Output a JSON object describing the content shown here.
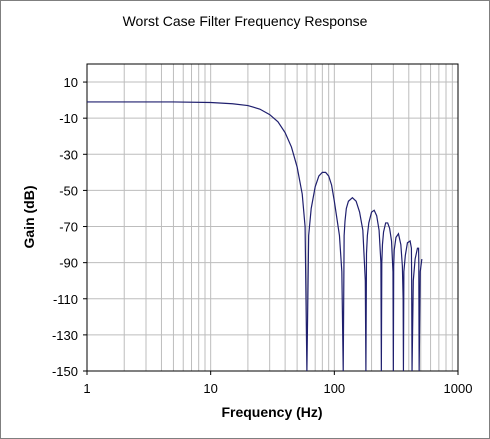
{
  "chart_data": {
    "type": "line",
    "title": "Worst Case Filter Frequency Response",
    "xlabel": "Frequency (Hz)",
    "ylabel": "Gain (dB)",
    "xscale": "log",
    "xlim": [
      1,
      1000
    ],
    "ylim": [
      -150,
      20
    ],
    "x_ticks": [
      1,
      10,
      100,
      1000
    ],
    "x_tick_labels": [
      "1",
      "10",
      "100",
      "1000"
    ],
    "y_ticks": [
      10,
      -10,
      -30,
      -50,
      -70,
      -90,
      -110,
      -130,
      -150
    ],
    "y_tick_labels": [
      "10",
      "-10",
      "-30",
      "-50",
      "-70",
      "-90",
      "-110",
      "-130",
      "-150"
    ],
    "grid": true,
    "legend": "none",
    "line_color": "#1f1f6e",
    "series": [
      {
        "x": [
          1,
          2,
          5,
          10,
          15,
          20,
          25,
          30,
          35,
          40,
          45,
          50,
          55,
          58,
          60,
          62,
          65,
          70,
          75,
          80,
          85,
          90,
          95,
          100,
          110,
          115,
          118,
          120,
          122,
          125,
          130,
          140,
          150,
          160,
          170,
          178,
          180,
          182,
          185,
          190,
          200,
          210,
          220,
          230,
          238,
          240,
          242,
          245,
          250,
          260,
          270,
          280,
          290,
          298,
          300,
          302,
          305,
          315,
          330,
          345,
          355,
          360,
          362,
          365,
          375,
          390,
          410,
          420,
          422,
          425,
          435,
          450,
          470,
          480,
          482,
          485,
          495,
          510
        ],
        "y": [
          -1,
          -1,
          -1,
          -1.3,
          -2,
          -3,
          -5,
          -8,
          -12,
          -18,
          -26,
          -37,
          -52,
          -70,
          -150,
          -75,
          -60,
          -48,
          -42,
          -40,
          -40,
          -42,
          -47,
          -56,
          -75,
          -95,
          -150,
          -75,
          -67,
          -60,
          -56,
          -54,
          -56,
          -62,
          -72,
          -100,
          -150,
          -85,
          -75,
          -68,
          -62,
          -61,
          -64,
          -72,
          -90,
          -150,
          -90,
          -80,
          -73,
          -68,
          -68,
          -71,
          -78,
          -95,
          -150,
          -92,
          -83,
          -76,
          -74,
          -80,
          -92,
          -110,
          -150,
          -95,
          -86,
          -79,
          -78,
          -82,
          -100,
          -150,
          -100,
          -88,
          -82,
          -82,
          -90,
          -150,
          -95,
          -88
        ]
      }
    ]
  }
}
